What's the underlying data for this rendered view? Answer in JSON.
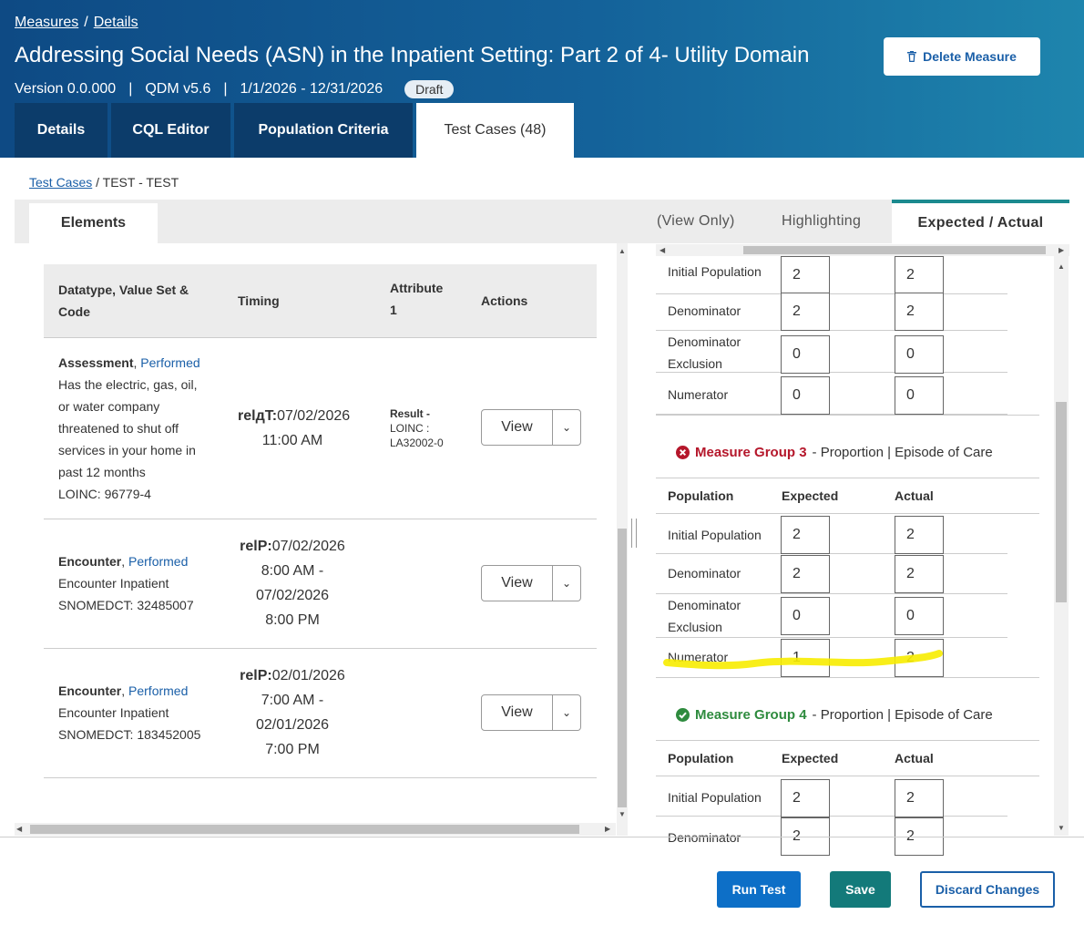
{
  "breadcrumb": {
    "measures": "Measures",
    "sep": "/",
    "details": "Details"
  },
  "header": {
    "title": "Addressing Social Needs (ASN) in the Inpatient Setting: Part 2 of 4- Utility Domain",
    "version": "Version 0.0.000",
    "qdm": "QDM v5.6",
    "period": "1/1/2026 - 12/31/2026",
    "status": "Draft",
    "delete_label": "Delete Measure",
    "bar": "|"
  },
  "tabs": [
    "Details",
    "CQL Editor",
    "Population Criteria",
    "Test Cases (48)"
  ],
  "sub_breadcrumb": {
    "link": "Test Cases",
    "current": "/ TEST - TEST"
  },
  "panel_tabs": {
    "elements": "Elements",
    "view_only": "(View Only)",
    "highlighting": "Highlighting",
    "expected_actual": "Expected / Actual"
  },
  "elements_table": {
    "headers": {
      "datatype_l1": "Datatype, Value Set &",
      "datatype_l2": "Code",
      "timing": "Timing",
      "attribute_l1": "Attribute",
      "attribute_l2": "1",
      "actions": "Actions"
    },
    "rows": [
      {
        "name": "Assessment",
        "kind": "Performed",
        "desc": [
          "Has the electric, gas, oil,",
          "or water company",
          "threatened to shut off",
          "services in your home in",
          "past 12 months",
          "LOINC: 96779-4"
        ],
        "timing_key": "relдT:",
        "timing": [
          "07/02/2026",
          "11:00 AM"
        ],
        "attr_key": "Result -",
        "attr": [
          "LOINC :",
          "LA32002-0"
        ],
        "view": "View"
      },
      {
        "name": "Encounter",
        "kind": "Performed",
        "desc": [
          "Encounter Inpatient",
          "SNOMEDCT: 32485007"
        ],
        "timing_key": "relP:",
        "timing": [
          "07/02/2026",
          "8:00 AM -",
          "07/02/2026",
          "8:00 PM"
        ],
        "view": "View"
      },
      {
        "name": "Encounter",
        "kind": "Performed",
        "desc": [
          "Encounter Inpatient",
          "SNOMEDCT: 183452005"
        ],
        "timing_key": "relP:",
        "timing": [
          "02/01/2026",
          "7:00 AM -",
          "02/01/2026",
          "7:00 PM"
        ],
        "view": "View"
      }
    ]
  },
  "expected_actual": {
    "group2_rows": [
      {
        "label": "Initial Population",
        "expected": "2",
        "actual": "2"
      },
      {
        "label": "Denominator",
        "expected": "2",
        "actual": "2"
      },
      {
        "label": "Denominator",
        "label2": "Exclusion",
        "expected": "0",
        "actual": "0"
      },
      {
        "label": "Numerator",
        "expected": "0",
        "actual": "0"
      }
    ],
    "group3": {
      "name": "Measure Group 3",
      "desc": "- Proportion | Episode of Care",
      "status_color": "#b5172b",
      "headers": {
        "population": "Population",
        "expected": "Expected",
        "actual": "Actual"
      },
      "rows": [
        {
          "label": "Initial Population",
          "expected": "2",
          "actual": "2"
        },
        {
          "label": "Denominator",
          "expected": "2",
          "actual": "2"
        },
        {
          "label": "Denominator",
          "label2": "Exclusion",
          "expected": "0",
          "actual": "0"
        },
        {
          "label": "Numerator",
          "expected": "1",
          "actual": "2"
        }
      ]
    },
    "group4": {
      "name": "Measure Group 4",
      "desc": "- Proportion | Episode of Care",
      "status_color": "#2e8b3e",
      "headers": {
        "population": "Population",
        "expected": "Expected",
        "actual": "Actual"
      },
      "rows": [
        {
          "label": "Initial Population",
          "expected": "2",
          "actual": "2"
        },
        {
          "label": "Denominator",
          "expected": "2",
          "actual": "2"
        }
      ]
    }
  },
  "footer": {
    "run": "Run Test",
    "save": "Save",
    "discard": "Discard Changes"
  },
  "colors": {
    "header_start": "#0e4a84",
    "header_end": "#1e85ad",
    "tab_dark": "#0c3c6a",
    "accent_teal": "#1b8a8f",
    "link": "#1a5fa8",
    "highlight": "#f7ec00"
  }
}
